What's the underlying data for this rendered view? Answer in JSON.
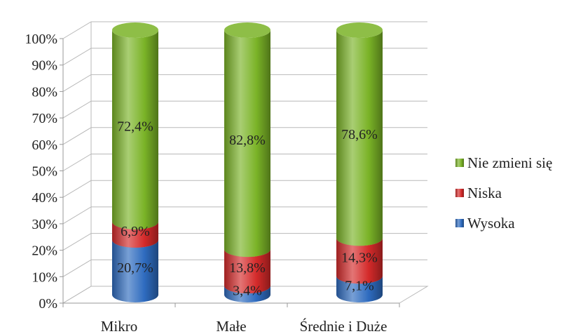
{
  "chart_data": {
    "type": "bar",
    "stacked": true,
    "style": "3d-cylinder",
    "categories": [
      "Mikro",
      "Małe",
      "Średnie i Duże"
    ],
    "series": [
      {
        "name": "Wysoka",
        "values": [
          20.7,
          3.4,
          7.1
        ],
        "labels": [
          "20,7%",
          "3,4%",
          "7,1%"
        ],
        "color": "#2e6bbf"
      },
      {
        "name": "Niska",
        "values": [
          6.9,
          13.8,
          14.3
        ],
        "labels": [
          "6,9%",
          "13,8%",
          "14,3%"
        ],
        "color": "#d42a2a"
      },
      {
        "name": "Nie zmieni się",
        "values": [
          72.4,
          82.8,
          78.6
        ],
        "labels": [
          "72,4%",
          "82,8%",
          "78,6%"
        ],
        "color": "#7ab327"
      }
    ],
    "yticks": [
      "0%",
      "10%",
      "20%",
      "30%",
      "40%",
      "50%",
      "60%",
      "70%",
      "80%",
      "90%",
      "100%"
    ],
    "ylim": [
      0,
      100
    ],
    "grid": true,
    "legend": "right",
    "legend_order": [
      "Nie zmieni się",
      "Niska",
      "Wysoka"
    ]
  }
}
